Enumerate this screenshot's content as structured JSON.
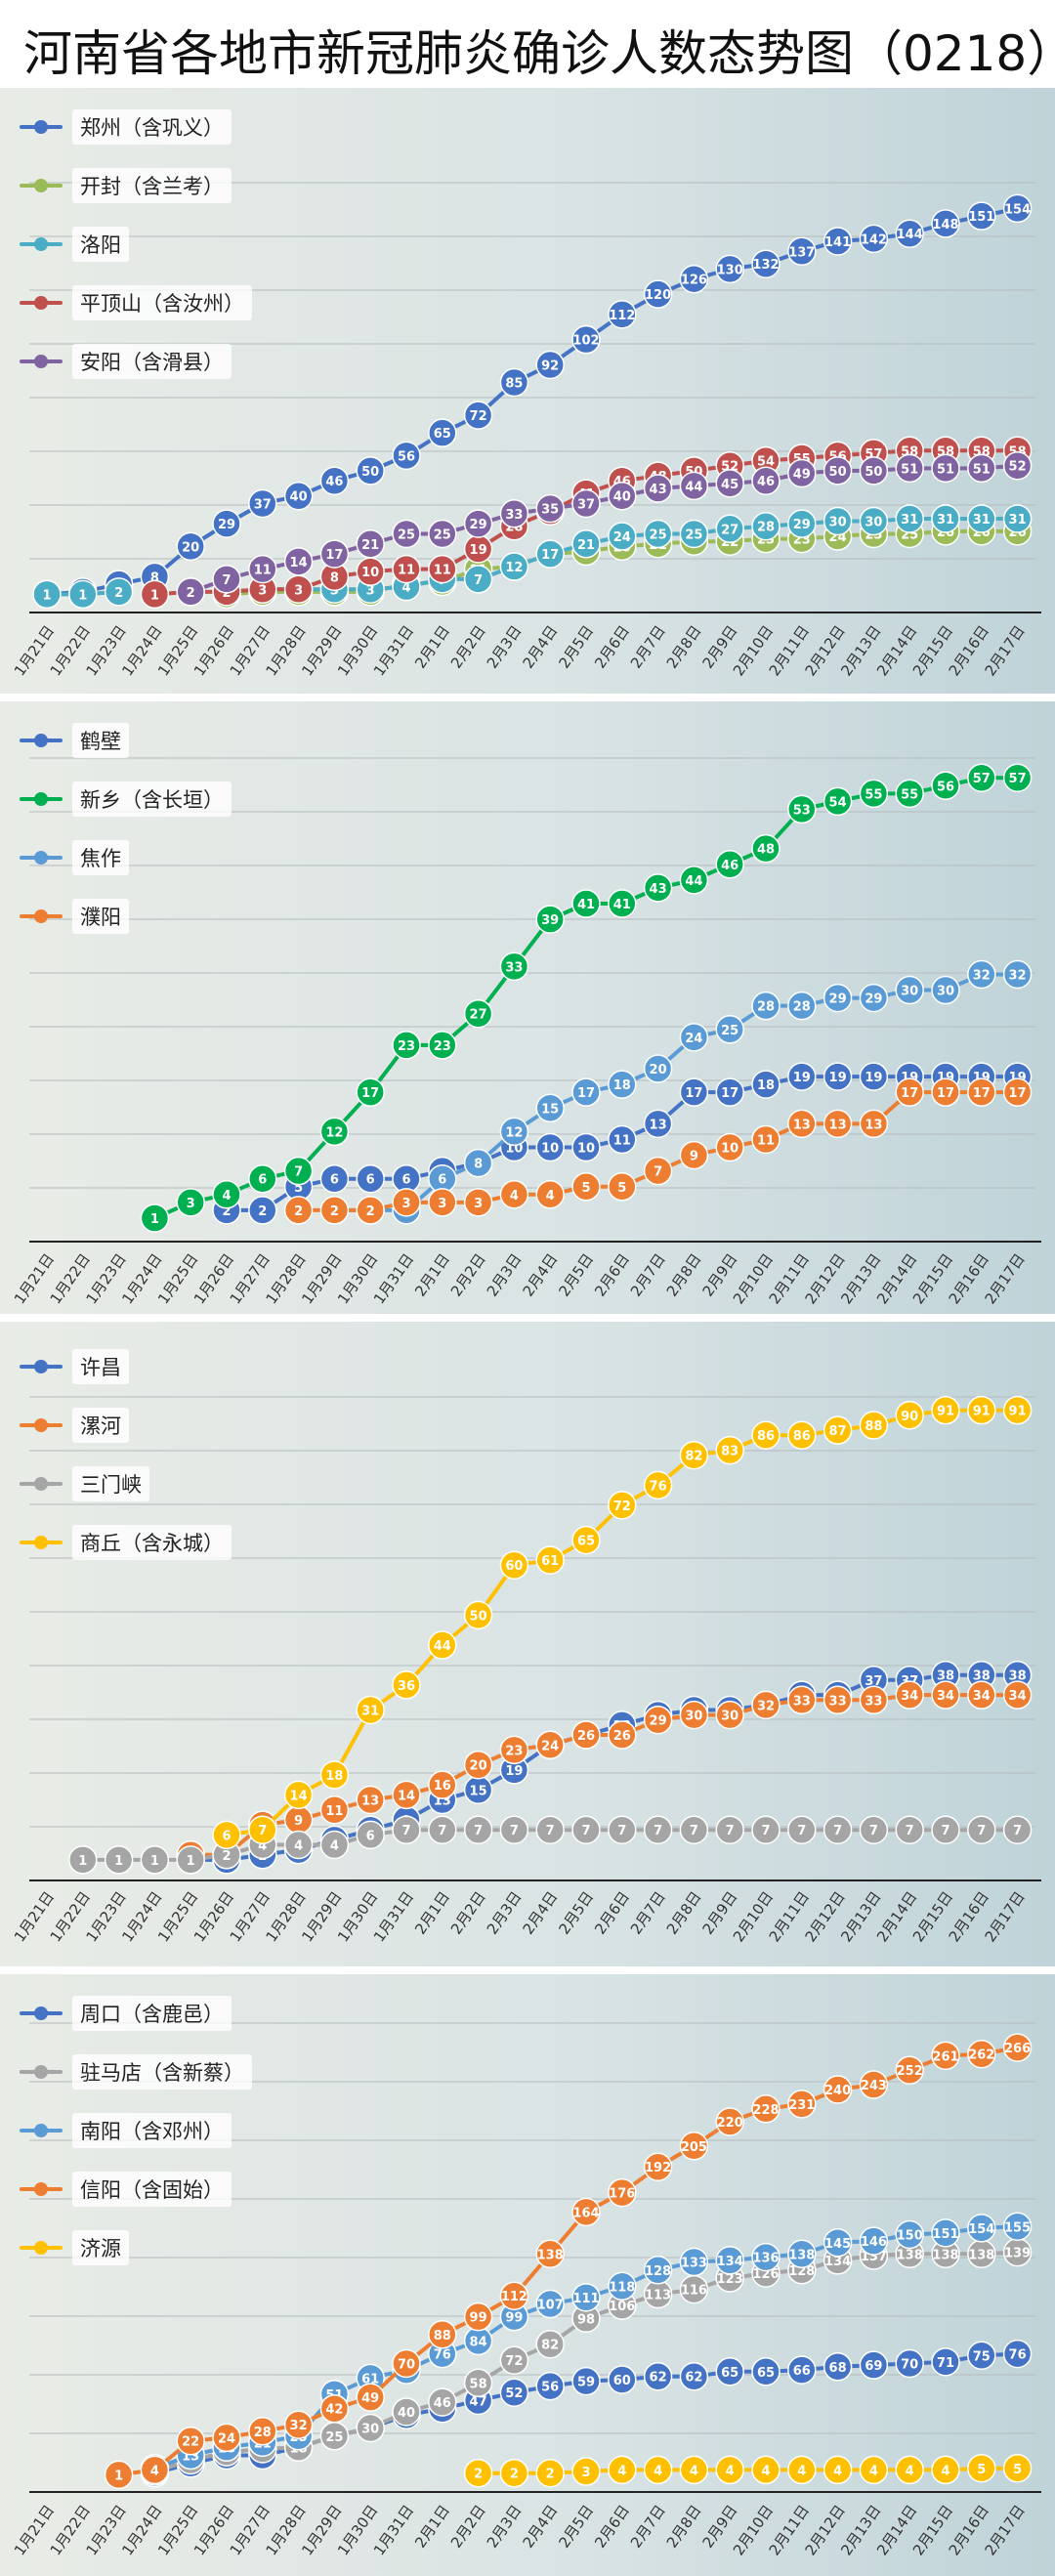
{
  "page": {
    "title": "河南省各地市新冠肺炎确诊人数态势图（0218）"
  },
  "chart_data": [
    {
      "type": "line",
      "x": [
        "1月21日",
        "1月22日",
        "1月23日",
        "1月24日",
        "1月25日",
        "1月26日",
        "1月27日",
        "1月28日",
        "1月29日",
        "1月30日",
        "1月31日",
        "2月1日",
        "2月2日",
        "2月3日",
        "2月4日",
        "2月5日",
        "2月6日",
        "2月7日",
        "2月8日",
        "2月9日",
        "2月10日",
        "2月11日",
        "2月12日",
        "2月13日",
        "2月14日",
        "2月15日",
        "2月16日",
        "2月17日"
      ],
      "ylim": [
        0,
        165
      ],
      "series": [
        {
          "name": "郑州（含巩义）",
          "color": "#4472c4",
          "values": [
            1,
            2,
            5,
            8,
            20,
            29,
            37,
            40,
            46,
            50,
            56,
            65,
            72,
            85,
            92,
            102,
            112,
            120,
            126,
            130,
            132,
            137,
            141,
            142,
            144,
            148,
            151,
            154
          ]
        },
        {
          "name": "开封（含兰考）",
          "color": "#9bbb59",
          "values": [
            null,
            null,
            null,
            null,
            null,
            1,
            2,
            2,
            2,
            2,
            5,
            6,
            11,
            12,
            17,
            18,
            20,
            21,
            22,
            22,
            23,
            23,
            24,
            25,
            25,
            26,
            26,
            26
          ]
        },
        {
          "name": "洛阳",
          "color": "#4bacc6",
          "values": [
            1,
            1,
            2,
            null,
            null,
            2,
            3,
            3,
            3,
            3,
            4,
            7,
            7,
            12,
            17,
            21,
            24,
            25,
            25,
            27,
            28,
            29,
            30,
            30,
            31,
            31,
            31,
            31
          ]
        },
        {
          "name": "平顶山（含汝州）",
          "color": "#c0504d",
          "values": [
            null,
            null,
            null,
            1,
            2,
            2,
            3,
            3,
            8,
            10,
            11,
            11,
            19,
            28,
            34,
            41,
            46,
            48,
            50,
            52,
            54,
            55,
            56,
            57,
            58,
            58,
            58,
            58
          ]
        },
        {
          "name": "安阳（含滑县）",
          "color": "#8064a2",
          "values": [
            null,
            null,
            null,
            null,
            2,
            7,
            11,
            14,
            17,
            21,
            25,
            25,
            29,
            33,
            35,
            37,
            40,
            43,
            44,
            45,
            46,
            49,
            50,
            50,
            51,
            51,
            51,
            52
          ]
        }
      ]
    },
    {
      "type": "line",
      "x": [
        "1月21日",
        "1月22日",
        "1月23日",
        "1月24日",
        "1月25日",
        "1月26日",
        "1月27日",
        "1月28日",
        "1月29日",
        "1月30日",
        "1月31日",
        "2月1日",
        "2月2日",
        "2月3日",
        "2月4日",
        "2月5日",
        "2月6日",
        "2月7日",
        "2月8日",
        "2月9日",
        "2月10日",
        "2月11日",
        "2月12日",
        "2月13日",
        "2月14日",
        "2月15日",
        "2月16日",
        "2月17日"
      ],
      "ylim": [
        0,
        62
      ],
      "series": [
        {
          "name": "鹤壁",
          "color": "#4472c4",
          "values": [
            null,
            null,
            null,
            null,
            null,
            2,
            2,
            5,
            6,
            6,
            6,
            7,
            8,
            10,
            10,
            10,
            11,
            13,
            17,
            17,
            18,
            19,
            19,
            19,
            19,
            19,
            19,
            19
          ]
        },
        {
          "name": "新乡（含长垣）",
          "color": "#00b050",
          "values": [
            null,
            null,
            null,
            1,
            3,
            4,
            6,
            7,
            12,
            17,
            23,
            23,
            27,
            33,
            39,
            41,
            41,
            43,
            44,
            46,
            48,
            53,
            54,
            55,
            55,
            56,
            57,
            57
          ]
        },
        {
          "name": "焦作",
          "color": "#5b9bd5",
          "values": [
            null,
            null,
            null,
            null,
            null,
            null,
            null,
            null,
            2,
            2,
            2,
            6,
            8,
            12,
            15,
            17,
            18,
            20,
            24,
            25,
            28,
            28,
            29,
            29,
            30,
            30,
            32,
            32
          ]
        },
        {
          "name": "濮阳",
          "color": "#ed7d31",
          "values": [
            null,
            null,
            null,
            null,
            null,
            null,
            null,
            2,
            2,
            2,
            3,
            3,
            3,
            4,
            4,
            5,
            5,
            7,
            9,
            10,
            11,
            13,
            13,
            13,
            17,
            17,
            17,
            17
          ]
        }
      ]
    },
    {
      "type": "line",
      "x": [
        "1月21日",
        "1月22日",
        "1月23日",
        "1月24日",
        "1月25日",
        "1月26日",
        "1月27日",
        "1月28日",
        "1月29日",
        "1月30日",
        "1月31日",
        "2月1日",
        "2月2日",
        "2月3日",
        "2月4日",
        "2月5日",
        "2月6日",
        "2月7日",
        "2月8日",
        "2月9日",
        "2月10日",
        "2月11日",
        "2月12日",
        "2月13日",
        "2月14日",
        "2月15日",
        "2月16日",
        "2月17日"
      ],
      "ylim": [
        0,
        97
      ],
      "series": [
        {
          "name": "许昌",
          "color": "#4472c4",
          "values": [
            null,
            null,
            null,
            null,
            1,
            1,
            2,
            3,
            5,
            7,
            9,
            13,
            15,
            19,
            24,
            26,
            28,
            30,
            31,
            31,
            32,
            34,
            34,
            37,
            37,
            38,
            38,
            38
          ]
        },
        {
          "name": "漯河",
          "color": "#ed7d31",
          "values": [
            null,
            null,
            null,
            null,
            2,
            2,
            8,
            9,
            11,
            13,
            14,
            16,
            20,
            23,
            24,
            26,
            26,
            29,
            30,
            30,
            32,
            33,
            33,
            33,
            34,
            34,
            34,
            34
          ]
        },
        {
          "name": "三门峡",
          "color": "#a5a5a5",
          "values": [
            null,
            1,
            1,
            1,
            1,
            2,
            4,
            4,
            4,
            6,
            7,
            7,
            7,
            7,
            7,
            7,
            7,
            7,
            7,
            7,
            7,
            7,
            7,
            7,
            7,
            7,
            7,
            7
          ]
        },
        {
          "name": "商丘（含永城）",
          "color": "#ffc000",
          "values": [
            null,
            null,
            null,
            null,
            null,
            6,
            7,
            14,
            18,
            31,
            36,
            44,
            50,
            60,
            61,
            65,
            72,
            76,
            82,
            83,
            86,
            86,
            87,
            88,
            90,
            91,
            91,
            91
          ]
        }
      ]
    },
    {
      "type": "line",
      "x": [
        "1月21日",
        "1月22日",
        "1月23日",
        "1月24日",
        "1月25日",
        "1月26日",
        "1月27日",
        "1月28日",
        "1月29日",
        "1月30日",
        "1月31日",
        "2月1日",
        "2月2日",
        "2月3日",
        "2月4日",
        "2月5日",
        "2月6日",
        "2月7日",
        "2月8日",
        "2月9日",
        "2月10日",
        "2月11日",
        "2月12日",
        "2月13日",
        "2月14日",
        "2月15日",
        "2月16日",
        "2月17日"
      ],
      "ylim": [
        0,
        280
      ],
      "series": [
        {
          "name": "周口（含鹿邑）",
          "color": "#4472c4",
          "values": [
            null,
            null,
            null,
            2,
            8,
            13,
            13,
            18,
            25,
            30,
            38,
            42,
            47,
            52,
            56,
            59,
            60,
            62,
            62,
            65,
            65,
            66,
            68,
            69,
            70,
            71,
            75,
            76
          ]
        },
        {
          "name": "驻马店（含新蔡）",
          "color": "#a5a5a5",
          "values": [
            null,
            null,
            null,
            3,
            10,
            15,
            17,
            18,
            25,
            30,
            40,
            46,
            58,
            72,
            82,
            98,
            106,
            113,
            116,
            123,
            126,
            128,
            134,
            137,
            138,
            138,
            138,
            139
          ]
        },
        {
          "name": "南阳（含邓州）",
          "color": "#5b9bd5",
          "values": [
            null,
            null,
            null,
            5,
            13,
            18,
            21,
            25,
            51,
            61,
            66,
            76,
            84,
            99,
            107,
            111,
            118,
            128,
            133,
            134,
            136,
            138,
            145,
            146,
            150,
            151,
            154,
            155
          ]
        },
        {
          "name": "信阳（含固始）",
          "color": "#ed7d31",
          "values": [
            null,
            null,
            1,
            4,
            22,
            24,
            28,
            32,
            42,
            49,
            70,
            88,
            99,
            112,
            138,
            164,
            176,
            192,
            205,
            220,
            228,
            231,
            240,
            243,
            252,
            261,
            262,
            266
          ]
        },
        {
          "name": "济源",
          "color": "#ffc000",
          "values": [
            null,
            null,
            null,
            null,
            null,
            null,
            null,
            null,
            null,
            null,
            null,
            null,
            2,
            2,
            2,
            3,
            4,
            4,
            4,
            4,
            4,
            4,
            4,
            4,
            4,
            4,
            5,
            5
          ]
        }
      ]
    }
  ]
}
